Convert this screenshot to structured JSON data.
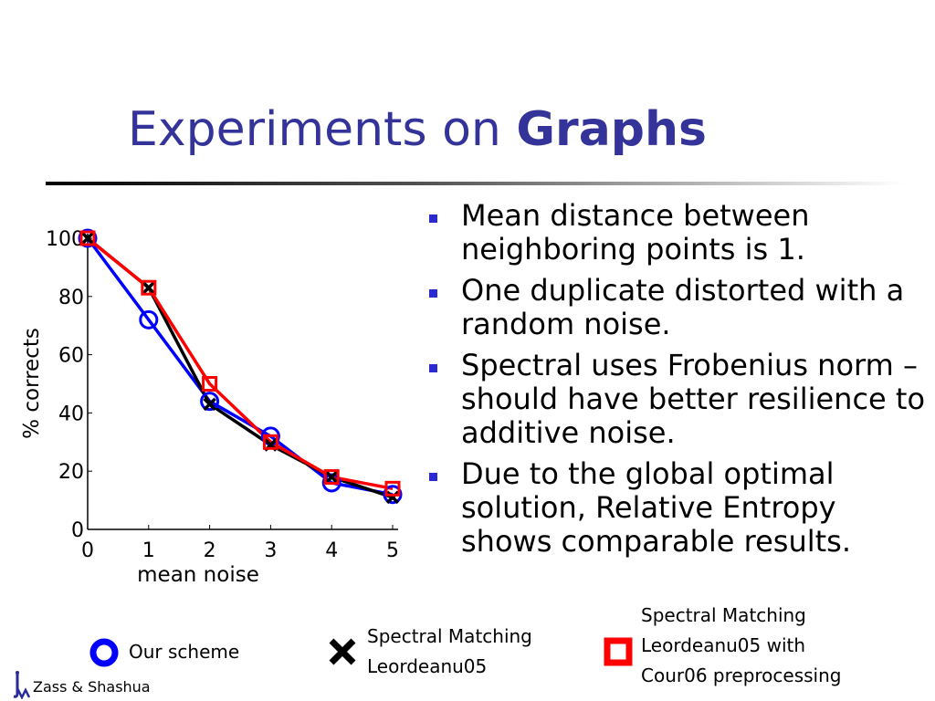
{
  "slide": {
    "title_plain": "Experiments on",
    "title_bold": "Graphs",
    "footer": "Zass & Shashua"
  },
  "bullets": [
    "Mean distance between neighboring points is 1.",
    "One duplicate distorted with a random noise.",
    "Spectral uses Frobenius norm – should have better resilience to additive noise.",
    "Due to the global optimal solution, Relative Entropy shows comparable results."
  ],
  "legend": {
    "our_scheme": "Our scheme",
    "spectral": [
      "Spectral Matching",
      "Leordeanu05"
    ],
    "spectral_cour": [
      "Spectral Matching",
      "Leordeanu05 with",
      "Cour06 preprocessing"
    ]
  },
  "colors": {
    "title": "#333399",
    "our_scheme": "#0000ff",
    "spectral": "#000000",
    "spectral_cour": "#ff0000",
    "bullet": "#2a2ad0"
  },
  "chart_data": {
    "type": "line",
    "xlabel": "mean noise",
    "ylabel": "% corrects",
    "x": [
      0,
      1,
      2,
      3,
      4,
      5
    ],
    "xlim": [
      0,
      5
    ],
    "ylim": [
      0,
      100
    ],
    "yticks": [
      0,
      20,
      40,
      60,
      80,
      100
    ],
    "series": [
      {
        "name": "Our scheme",
        "marker": "circle",
        "color": "#0000ff",
        "values": [
          100,
          72,
          44,
          32,
          16,
          12
        ]
      },
      {
        "name": "Spectral Matching Leordeanu05",
        "marker": "x",
        "color": "#000000",
        "values": [
          100,
          83,
          43,
          29,
          18,
          11
        ]
      },
      {
        "name": "Spectral Matching Leordeanu05 with Cour06 preprocessing",
        "marker": "square",
        "color": "#ff0000",
        "values": [
          100,
          83,
          50,
          30,
          18,
          14
        ]
      }
    ]
  }
}
